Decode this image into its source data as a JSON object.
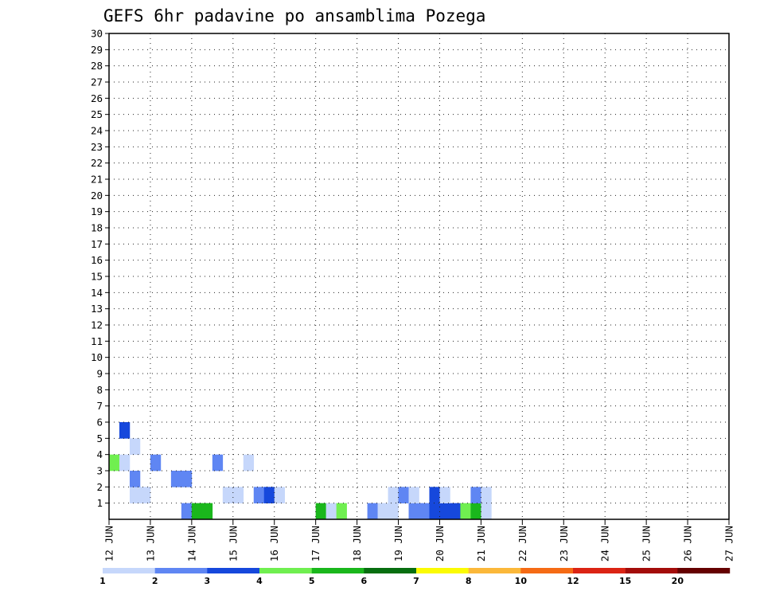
{
  "chart_data": {
    "type": "heatmap",
    "title": "GEFS 6hr padavine po ansamblima Pozega",
    "xlabel": "",
    "ylabel": "",
    "x_tick_labels": [
      "12 JUN",
      "13 JUN",
      "14 JUN",
      "15 JUN",
      "16 JUN",
      "17 JUN",
      "18 JUN",
      "19 JUN",
      "20 JUN",
      "21 JUN",
      "22 JUN",
      "23 JUN",
      "24 JUN",
      "25 JUN",
      "26 JUN",
      "27 JUN"
    ],
    "y_tick_labels": [
      "1",
      "2",
      "3",
      "4",
      "5",
      "6",
      "7",
      "8",
      "9",
      "10",
      "11",
      "12",
      "13",
      "14",
      "15",
      "16",
      "17",
      "18",
      "19",
      "20",
      "21",
      "22",
      "23",
      "24",
      "25",
      "26",
      "27",
      "28",
      "29",
      "30"
    ],
    "x_range": [
      "12 JUN 00Z",
      "27 JUN 00Z"
    ],
    "time_step_hours": 6,
    "y_range": [
      1,
      30
    ],
    "grid": true,
    "legend": {
      "placement": "bottom",
      "levels": [
        "1",
        "2",
        "3",
        "4",
        "5",
        "6",
        "7",
        "8",
        "10",
        "12",
        "15",
        "20"
      ],
      "colors": [
        "#c6d7fb",
        "#5f86f3",
        "#1648dc",
        "#70ef50",
        "#1ab71c",
        "#076e10",
        "#fbfb04",
        "#fbb83a",
        "#f56b15",
        "#db2414",
        "#a30c0a",
        "#650000"
      ]
    },
    "cells": {
      "1": "000000025500000000005140021102233345100000000000000000000000",
      "2": "001100000001102310000000000121031002100000000000000000000000",
      "3": "002000220000000000000000000000000000000000000000000000000000",
      "4": "410020000020010000000000000000000000000000000000000000000000",
      "5": "001000000000000000000000000000000000000000000000000000000000",
      "6": "030000000000000000000000000000000000000000000000000000000000",
      "7": "000000000000000000000000000000000000000000000000000000000000",
      "8": "000000000000000000000000000000000000000000000000000000000000",
      "9": "000000000000000000000000000000000000000000000000000000000000",
      "10": "000000000000000000000000000000000000000000000000000000000000",
      "11": "000000000000000000000000000000000000000000000000000000000000",
      "12": "000000000000000000000000000000000000000000000000000000000000",
      "13": "000000000000000000000000000000000000000000000000000000000000",
      "14": "000000000000000000000000000000000000000000000000000000000000",
      "15": "000000000000000000000000000000000000000000000000000000000000",
      "16": "000000000000000000000000000000000000000000000000000000000000",
      "17": "000000000000000000000000000000000000000000000000000000000000",
      "18": "000000000000000000000000000000000000000000000000000000000000",
      "19": "000000000000000000000000000000000000000000000000000000000000",
      "20": "000000000000000000000000000000000000000000000000000000000000",
      "21": "000000000000000000000000000000000000000000000000000000000000",
      "22": "000000000000000000000000000000000000000000000000000000000000",
      "23": "000000000000000000000000000000000000000000000000000000000000",
      "24": "000000000000000000000000000000000000000000000000000000000000",
      "25": "000000000000000000000000000000000000000000000000000000000000",
      "26": "000000000000000000000000000000000000000000000000000000000000",
      "27": "000000000000000000000000000000000000000000000000000000000000",
      "28": "000000000000000000000000000000000000000000000000000000000000",
      "29": "000000000000000000000000000000000000000000000000000000000000",
      "30": "000000000000000000000000000000000000000000000000000000000000"
    }
  }
}
